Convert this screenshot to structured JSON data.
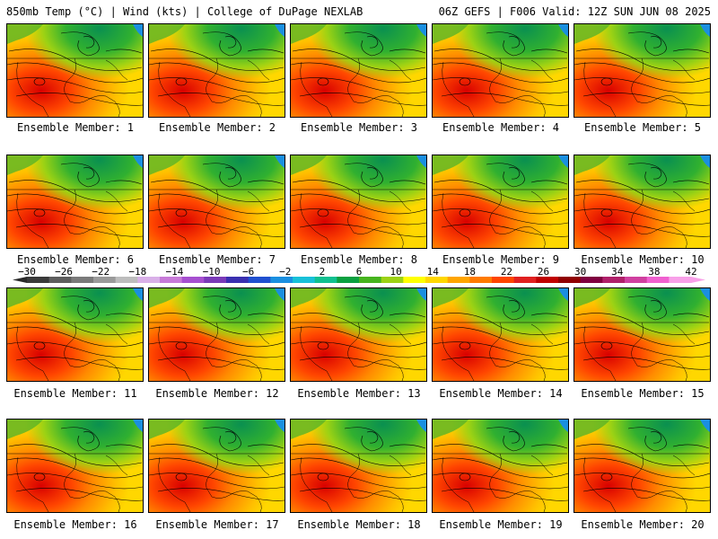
{
  "header": {
    "left": "850mb Temp (°C) | Wind (kts) | College of DuPage NEXLAB",
    "right": "06Z GEFS | F006 Valid: 12Z SUN JUN 08 2025"
  },
  "members": [
    "Ensemble Member: 1",
    "Ensemble Member: 2",
    "Ensemble Member: 3",
    "Ensemble Member: 4",
    "Ensemble Member: 5",
    "Ensemble Member: 6",
    "Ensemble Member: 7",
    "Ensemble Member: 8",
    "Ensemble Member: 9",
    "Ensemble Member: 10",
    "Ensemble Member: 11",
    "Ensemble Member: 12",
    "Ensemble Member: 13",
    "Ensemble Member: 14",
    "Ensemble Member: 15",
    "Ensemble Member: 16",
    "Ensemble Member: 17",
    "Ensemble Member: 18",
    "Ensemble Member: 19",
    "Ensemble Member: 20"
  ],
  "colorbar": {
    "ticks": [
      "−30",
      "−26",
      "−22",
      "−18",
      "−14",
      "−10",
      "−6",
      "−2",
      "2",
      "6",
      "10",
      "14",
      "18",
      "22",
      "26",
      "30",
      "34",
      "38",
      "42"
    ],
    "colors": [
      "#3a3a3a",
      "#5e5e5e",
      "#7a7a7a",
      "#9a9a9a",
      "#bdbdbd",
      "#d9b0e8",
      "#c77ad8",
      "#a64fd0",
      "#7a3ab8",
      "#3a2fb0",
      "#2050d0",
      "#1a8fe0",
      "#18c0d8",
      "#10c090",
      "#0aa040",
      "#46b41e",
      "#9cd214",
      "#ffff00",
      "#ffd700",
      "#ffa500",
      "#ff7a00",
      "#ff4500",
      "#e02020",
      "#c00000",
      "#900000",
      "#800040",
      "#b0206a",
      "#d040a0",
      "#f060d0",
      "#f8a0e8"
    ]
  }
}
